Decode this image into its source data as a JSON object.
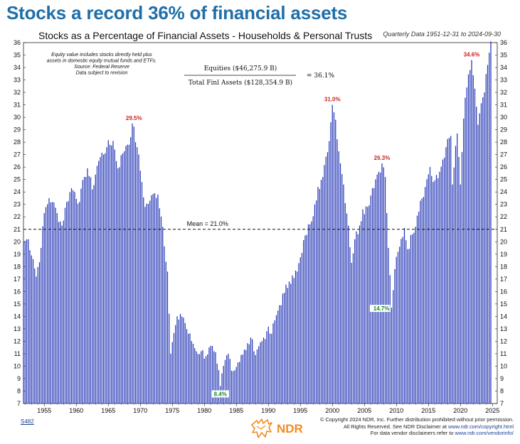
{
  "headline": "Stocks a record 36% of financial assets",
  "chart_data": {
    "type": "bar",
    "title": "Stocks as a Percentage of Financial Assets - Households & Personal Trusts",
    "subtitle": "Quarterly Data 1951-12-31 to 2024-09-30",
    "xlim": [
      1951.75,
      2025.75
    ],
    "ylim": [
      7,
      36
    ],
    "y_ticks": [
      7,
      8,
      9,
      10,
      11,
      12,
      13,
      14,
      15,
      16,
      17,
      18,
      19,
      20,
      21,
      22,
      23,
      24,
      25,
      26,
      27,
      28,
      29,
      30,
      31,
      32,
      33,
      34,
      35,
      36
    ],
    "x_ticks": [
      "1955",
      "1960",
      "1965",
      "1970",
      "1975",
      "1980",
      "1985",
      "1990",
      "1995",
      "2000",
      "2005",
      "2010",
      "2015",
      "2020",
      "2025"
    ],
    "x_tick_years": [
      1955,
      1960,
      1965,
      1970,
      1975,
      1980,
      1985,
      1990,
      1995,
      2000,
      2005,
      2010,
      2015,
      2020,
      2025
    ],
    "bar_color": "#2436b5",
    "mean": {
      "value": 21.0,
      "label": "Mean = 21.0%"
    },
    "series": [
      {
        "start": 1951.75,
        "step": 0.25,
        "anchors": [
          [
            1951.75,
            20.0
          ],
          [
            1952.5,
            20.2
          ],
          [
            1953.25,
            18.6
          ],
          [
            1953.75,
            17.2
          ],
          [
            1954.5,
            19.5
          ],
          [
            1955.0,
            22.3
          ],
          [
            1955.75,
            23.5
          ],
          [
            1956.25,
            23.2
          ],
          [
            1957.0,
            22.3
          ],
          [
            1957.75,
            21.3
          ],
          [
            1958.5,
            23.2
          ],
          [
            1959.25,
            24.3
          ],
          [
            1959.75,
            24.0
          ],
          [
            1960.5,
            23.2
          ],
          [
            1961.25,
            25.2
          ],
          [
            1961.75,
            25.9
          ],
          [
            1962.5,
            24.2
          ],
          [
            1963.25,
            26.1
          ],
          [
            1963.75,
            26.8
          ],
          [
            1964.75,
            27.6
          ],
          [
            1965.75,
            28.1
          ],
          [
            1966.5,
            25.9
          ],
          [
            1967.25,
            27.1
          ],
          [
            1967.75,
            27.7
          ],
          [
            1968.5,
            28.4
          ],
          [
            1968.75,
            29.5
          ],
          [
            1969.5,
            27.6
          ],
          [
            1970.25,
            24.8
          ],
          [
            1970.75,
            22.8
          ],
          [
            1971.5,
            23.3
          ],
          [
            1972.25,
            23.9
          ],
          [
            1972.75,
            23.8
          ],
          [
            1973.5,
            21.2
          ],
          [
            1974.25,
            17.6
          ],
          [
            1974.75,
            11.0
          ],
          [
            1975.5,
            13.3
          ],
          [
            1976.25,
            14.2
          ],
          [
            1976.75,
            13.9
          ],
          [
            1977.5,
            12.6
          ],
          [
            1978.25,
            11.8
          ],
          [
            1978.75,
            11.2
          ],
          [
            1979.5,
            11.2
          ],
          [
            1980.25,
            10.8
          ],
          [
            1980.75,
            11.5
          ],
          [
            1981.5,
            11.2
          ],
          [
            1982.0,
            10.2
          ],
          [
            1982.5,
            8.4
          ],
          [
            1983.25,
            10.5
          ],
          [
            1983.75,
            11.0
          ],
          [
            1984.5,
            9.6
          ],
          [
            1985.25,
            10.3
          ],
          [
            1985.75,
            10.9
          ],
          [
            1986.5,
            11.3
          ],
          [
            1987.25,
            12.3
          ],
          [
            1987.75,
            11.2
          ],
          [
            1988.5,
            11.6
          ],
          [
            1989.25,
            12.3
          ],
          [
            1989.75,
            12.8
          ],
          [
            1990.5,
            12.6
          ],
          [
            1991.25,
            14.1
          ],
          [
            1991.75,
            14.9
          ],
          [
            1992.5,
            15.9
          ],
          [
            1993.25,
            16.8
          ],
          [
            1993.75,
            17.3
          ],
          [
            1994.5,
            17.6
          ],
          [
            1995.25,
            19.1
          ],
          [
            1995.75,
            20.5
          ],
          [
            1996.5,
            21.4
          ],
          [
            1997.25,
            23.0
          ],
          [
            1997.75,
            24.4
          ],
          [
            1998.5,
            25.2
          ],
          [
            1999.25,
            27.2
          ],
          [
            1999.75,
            29.6
          ],
          [
            2000.0,
            31.0
          ],
          [
            2000.5,
            29.8
          ],
          [
            2001.25,
            26.3
          ],
          [
            2001.75,
            24.6
          ],
          [
            2002.5,
            21.3
          ],
          [
            2003.0,
            18.3
          ],
          [
            2003.5,
            20.2
          ],
          [
            2004.25,
            21.3
          ],
          [
            2004.75,
            22.6
          ],
          [
            2005.5,
            22.8
          ],
          [
            2006.25,
            24.3
          ],
          [
            2007.0,
            25.4
          ],
          [
            2007.75,
            26.3
          ],
          [
            2008.25,
            25.2
          ],
          [
            2008.75,
            19.5
          ],
          [
            2009.25,
            14.7
          ],
          [
            2009.75,
            17.8
          ],
          [
            2010.5,
            19.6
          ],
          [
            2011.25,
            21.1
          ],
          [
            2011.75,
            19.4
          ],
          [
            2012.5,
            20.6
          ],
          [
            2013.25,
            22.1
          ],
          [
            2013.75,
            23.3
          ],
          [
            2014.5,
            24.4
          ],
          [
            2015.25,
            26.0
          ],
          [
            2015.75,
            24.8
          ],
          [
            2016.5,
            25.1
          ],
          [
            2017.25,
            26.6
          ],
          [
            2017.75,
            27.6
          ],
          [
            2018.5,
            28.5
          ],
          [
            2018.75,
            24.6
          ],
          [
            2019.5,
            28.7
          ],
          [
            2020.0,
            24.6
          ],
          [
            2020.5,
            29.9
          ],
          [
            2021.0,
            32.4
          ],
          [
            2021.5,
            33.8
          ],
          [
            2021.75,
            34.6
          ],
          [
            2022.25,
            32.3
          ],
          [
            2022.75,
            29.4
          ],
          [
            2023.5,
            31.6
          ],
          [
            2023.75,
            32.0
          ],
          [
            2024.25,
            34.2
          ],
          [
            2024.75,
            36.1
          ]
        ]
      }
    ],
    "annotations": [
      {
        "text": "29.5%",
        "x": 1969.0,
        "y": 29.5,
        "color": "#cc2222",
        "box": false,
        "label_pos": "above"
      },
      {
        "text": "8.4%",
        "x": 1982.5,
        "y": 8.4,
        "color": "#1a8a2a",
        "box": true,
        "label_pos": "below"
      },
      {
        "text": "31.0%",
        "x": 2000.0,
        "y": 31.0,
        "color": "#cc2222",
        "box": false,
        "label_pos": "above"
      },
      {
        "text": "26.3%",
        "x": 2007.75,
        "y": 26.3,
        "color": "#cc2222",
        "box": false,
        "label_pos": "above"
      },
      {
        "text": "14.7%",
        "x": 2009.25,
        "y": 14.7,
        "color": "#1a8a2a",
        "box": true,
        "label_pos": "left"
      },
      {
        "text": "34.6%",
        "x": 2021.75,
        "y": 34.6,
        "color": "#cc2222",
        "box": false,
        "label_pos": "above"
      }
    ],
    "notes": [
      "Equity value includes stocks directly held plus",
      "assets in domestic equity mutual funds and ETFs.",
      "Source: Federal Reserve",
      "Data subject to revision"
    ],
    "formula": {
      "numerator": "Equities ($46,275.9 B)",
      "denominator": "Total Finl Assets ($128,354.9 B)",
      "result": "= 36.1%"
    },
    "grid": false,
    "legend": "none"
  },
  "footer": {
    "code": "S482",
    "logo_text": "NDR",
    "copyright_lines": [
      "© Copyright 2024 NDR, Inc. Further distribution prohibited without prior permission.",
      "All Rights Reserved. See NDR Disclaimer at ",
      "For data vendor disclaimers refer to "
    ],
    "copyright_links": [
      "www.ndr.com/copyright.html",
      "www.ndr.com/vendorinfo/"
    ]
  }
}
